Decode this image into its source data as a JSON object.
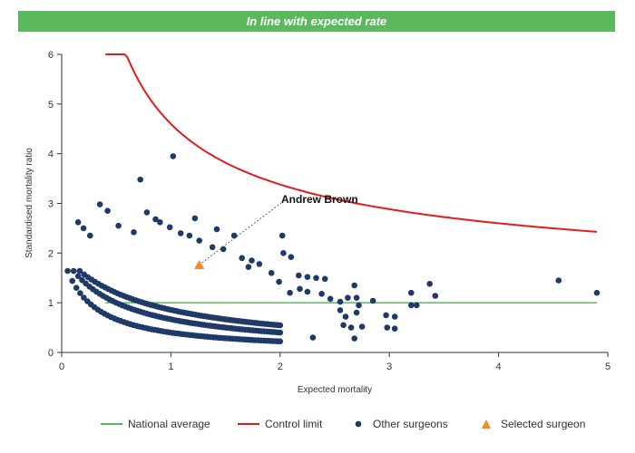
{
  "banner": {
    "text": "In line with expected rate",
    "color": "#5cb85c"
  },
  "chart_data": {
    "type": "scatter",
    "title": "",
    "xlabel": "Expected mortality",
    "ylabel": "Standardised mortality ratio",
    "xlim": [
      0,
      5
    ],
    "ylim": [
      0,
      6
    ],
    "xticks": [
      "0",
      "1",
      "2",
      "3",
      "4",
      "5"
    ],
    "yticks": [
      "0",
      "1",
      "2",
      "3",
      "4",
      "5",
      "6"
    ],
    "grid": false,
    "legend_position": "bottom",
    "national_average": {
      "name": "National average",
      "color": "#5cb85c",
      "y": 1,
      "x_range": [
        0.4,
        4.9
      ]
    },
    "control_limit": {
      "name": "Control limit",
      "color": "#e41a1c",
      "x_range": [
        0.4,
        4.9
      ]
    },
    "other_surgeons": {
      "name": "Other surgeons",
      "color": "#1f3a68",
      "curve_start_x": 0.01,
      "curve_end_x": 2.0,
      "curve_deaths": [
        1,
        2,
        3
      ],
      "scattered": [
        [
          0.15,
          2.62
        ],
        [
          0.2,
          2.5
        ],
        [
          0.26,
          2.35
        ],
        [
          0.35,
          2.98
        ],
        [
          0.42,
          2.85
        ],
        [
          0.52,
          2.55
        ],
        [
          0.66,
          2.42
        ],
        [
          0.72,
          3.48
        ],
        [
          0.78,
          2.82
        ],
        [
          0.86,
          2.68
        ],
        [
          0.9,
          2.62
        ],
        [
          0.99,
          2.52
        ],
        [
          1.02,
          3.95
        ],
        [
          1.09,
          2.4
        ],
        [
          1.17,
          2.35
        ],
        [
          1.22,
          2.7
        ],
        [
          1.26,
          2.25
        ],
        [
          1.38,
          2.12
        ],
        [
          1.42,
          2.48
        ],
        [
          1.48,
          2.08
        ],
        [
          1.58,
          2.35
        ],
        [
          1.65,
          1.9
        ],
        [
          1.74,
          1.85
        ],
        [
          1.71,
          1.72
        ],
        [
          1.81,
          1.78
        ],
        [
          1.92,
          1.6
        ],
        [
          1.99,
          1.42
        ],
        [
          2.02,
          2.35
        ],
        [
          2.03,
          2.0
        ],
        [
          2.1,
          1.92
        ],
        [
          2.17,
          1.55
        ],
        [
          2.25,
          1.52
        ],
        [
          2.33,
          1.5
        ],
        [
          2.41,
          1.48
        ],
        [
          2.09,
          1.2
        ],
        [
          2.18,
          1.28
        ],
        [
          2.25,
          1.22
        ],
        [
          2.38,
          1.18
        ],
        [
          2.46,
          1.08
        ],
        [
          2.55,
          1.02
        ],
        [
          2.62,
          1.1
        ],
        [
          2.68,
          1.35
        ],
        [
          2.7,
          1.1
        ],
        [
          2.72,
          0.95
        ],
        [
          2.85,
          1.04
        ],
        [
          2.55,
          0.85
        ],
        [
          2.6,
          0.72
        ],
        [
          2.7,
          0.8
        ],
        [
          2.58,
          0.55
        ],
        [
          2.75,
          0.52
        ],
        [
          2.65,
          0.5
        ],
        [
          2.68,
          0.28
        ],
        [
          2.3,
          0.3
        ],
        [
          2.97,
          0.75
        ],
        [
          3.05,
          0.72
        ],
        [
          2.98,
          0.5
        ],
        [
          3.05,
          0.48
        ],
        [
          3.2,
          1.2
        ],
        [
          3.2,
          0.95
        ],
        [
          3.25,
          0.95
        ],
        [
          3.37,
          1.38
        ],
        [
          3.42,
          1.14
        ],
        [
          4.55,
          1.45
        ],
        [
          4.9,
          1.2
        ]
      ]
    },
    "selected_surgeon": {
      "name": "Selected surgeon",
      "label": "Andrew Brown",
      "color": "#f28c28",
      "x": 1.26,
      "y": 1.75
    }
  }
}
